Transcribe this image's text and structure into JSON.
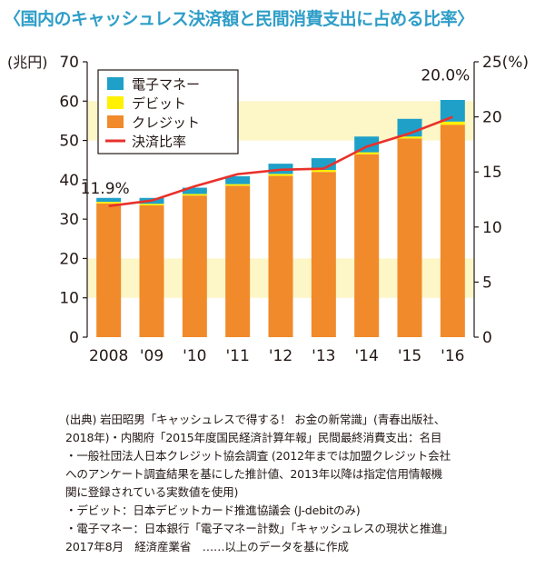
{
  "title": "〈国内のキャッシュレス決済額と民間消費支出に占める比率〉",
  "colors": {
    "title": "#2f9ec8",
    "band": "#fdf6c7",
    "credit": "#f08a2b",
    "debit": "#fff100",
    "emoney": "#1ea0c8",
    "ratio_line": "#e8312b"
  },
  "chart_data": {
    "type": "bar",
    "stacked": true,
    "categories": [
      "2008",
      "'09",
      "'10",
      "'11",
      "'12",
      "'13",
      "'14",
      "'15",
      "'16"
    ],
    "series": [
      {
        "name": "クレジット",
        "axis": "left",
        "values": [
          34.0,
          33.5,
          36.0,
          38.5,
          41.0,
          42.0,
          46.5,
          50.5,
          54.0
        ]
      },
      {
        "name": "デビット",
        "axis": "left",
        "values": [
          0.4,
          0.4,
          0.4,
          0.4,
          0.5,
          0.5,
          0.5,
          0.5,
          0.8
        ]
      },
      {
        "name": "電子マネー",
        "axis": "left",
        "values": [
          1.0,
          1.5,
          1.6,
          2.0,
          2.6,
          3.0,
          4.0,
          4.5,
          5.5
        ]
      },
      {
        "name": "決済比率",
        "axis": "right",
        "type": "line",
        "values": [
          11.9,
          12.4,
          13.7,
          14.8,
          15.2,
          15.3,
          17.3,
          18.5,
          20.0
        ]
      }
    ],
    "ylabel_left": "(兆円)",
    "ylabel_right": "(%)",
    "ylim_left": [
      0,
      70
    ],
    "ylim_right": [
      0,
      25
    ],
    "yticks_left": [
      "0",
      "10",
      "20",
      "30",
      "40",
      "50",
      "60",
      "70"
    ],
    "yticks_right": [
      "0",
      "5",
      "10",
      "15",
      "20",
      "25(%)"
    ],
    "annotations": {
      "first": "11.9%",
      "last": "20.0%"
    },
    "legend_position": "top-left"
  },
  "notes": [
    "(出典) 岩田昭男「キャッシュレスで得する！ お金の新常識」(青春出版社、",
    "2018年)・内閣府「2015年度国民経済計算年報」民間最終消費支出：名目",
    "・一般社団法人日本クレジット協会調査 (2012年までは加盟クレジット会社",
    "へのアンケート調査結果を基にした推計値、2013年以降は指定信用情報機",
    "関に登録されている実数値を使用)",
    "・デビット：日本デビットカード推進協議会 (J-debitのみ)",
    "・電子マネー：日本銀行「電子マネー計数」「キャッシュレスの現状と推進」",
    "2017年8月　経済産業省　……以上のデータを基に作成"
  ]
}
